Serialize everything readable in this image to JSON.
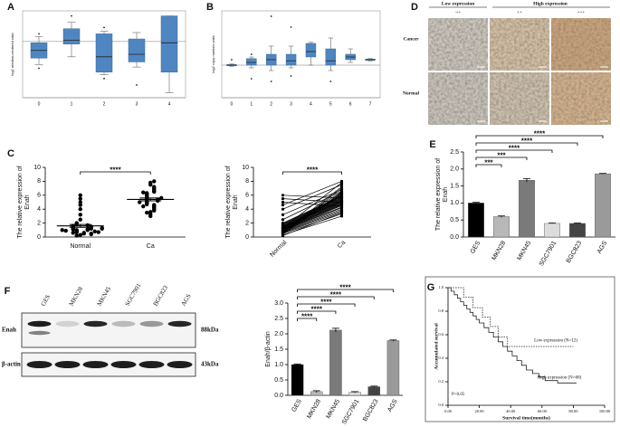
{
  "panel_labels": [
    "A",
    "B",
    "C",
    "D",
    "E",
    "F",
    "G"
  ],
  "ihc": {
    "col_groups": [
      "Low expression",
      "High expression"
    ],
    "grades": [
      "-/+",
      "++",
      "+++"
    ],
    "rows": [
      "Cancer",
      "Normal"
    ]
  },
  "blot": {
    "lanes": [
      "GES",
      "MKN28",
      "MKN45",
      "SGC7901",
      "BGC823",
      "AGS"
    ],
    "bands": [
      {
        "name": "Enah",
        "size": "88kDa"
      },
      {
        "name": "β-actin",
        "size": "43kDa"
      }
    ]
  },
  "chart_data": [
    {
      "type": "box",
      "y_label": "log2 median-centered ratio",
      "categories": [
        "0",
        "1",
        "2",
        "3",
        "4"
      ],
      "color": "#4f86c1",
      "reference_line": 0,
      "ylim": [
        -2.2,
        1.2
      ],
      "boxes": [
        {
          "low": -0.9,
          "q1": -0.65,
          "median": -0.35,
          "q3": -0.05,
          "high": 0.2,
          "outliers": [
            0.3,
            -1.05
          ]
        },
        {
          "low": -0.6,
          "q1": -0.1,
          "median": 0.05,
          "q3": 0.5,
          "high": 0.75,
          "outliers": [
            1.0
          ]
        },
        {
          "low": -1.3,
          "q1": -1.2,
          "median": -0.6,
          "q3": 0.3,
          "high": 0.4,
          "outliers": [
            0.55,
            -1.45
          ]
        },
        {
          "low": -1.0,
          "q1": -0.8,
          "median": -0.5,
          "q3": 0.1,
          "high": 0.35,
          "outliers": [
            -1.7
          ]
        },
        {
          "low": -2.0,
          "q1": -1.2,
          "median": -0.05,
          "q3": 1.0,
          "high": 1.0,
          "outliers": []
        }
      ]
    },
    {
      "type": "box",
      "y_label": "log2 copy number units",
      "categories": [
        "0",
        "1",
        "2",
        "3",
        "4",
        "5",
        "6",
        "7"
      ],
      "color": "#4f86c1",
      "reference_line": 0,
      "ylim": [
        -0.6,
        1.0
      ],
      "boxes": [
        {
          "low": -0.02,
          "q1": -0.01,
          "median": 0.0,
          "q3": 0.01,
          "high": 0.02,
          "outliers": [
            0.1
          ]
        },
        {
          "low": -0.05,
          "q1": 0.0,
          "median": 0.05,
          "q3": 0.12,
          "high": 0.15,
          "outliers": [
            0.2,
            -0.25
          ]
        },
        {
          "low": -0.1,
          "q1": 0.0,
          "median": 0.1,
          "q3": 0.2,
          "high": 0.35,
          "outliers": [
            0.9,
            -0.3
          ]
        },
        {
          "low": -0.05,
          "q1": 0.0,
          "median": 0.08,
          "q3": 0.2,
          "high": 0.35,
          "outliers": [
            0.7,
            -0.2
          ]
        },
        {
          "low": 0.0,
          "q1": 0.15,
          "median": 0.25,
          "q3": 0.4,
          "high": 0.42,
          "outliers": []
        },
        {
          "low": -0.1,
          "q1": 0.0,
          "median": 0.08,
          "q3": 0.3,
          "high": 0.5,
          "outliers": [
            -0.3
          ]
        },
        {
          "low": 0.05,
          "q1": 0.1,
          "median": 0.15,
          "q3": 0.2,
          "high": 0.3,
          "outliers": []
        },
        {
          "low": 0.08,
          "q1": 0.09,
          "median": 0.1,
          "q3": 0.11,
          "high": 0.12,
          "outliers": []
        }
      ]
    },
    {
      "type": "strip",
      "y_label": [
        "The relative expression of",
        "Enah"
      ],
      "categories": [
        "Normal",
        "Ca"
      ],
      "ylim": [
        0,
        10
      ],
      "yticks": [
        0,
        2,
        4,
        6,
        8,
        10
      ],
      "groups": [
        {
          "values": [
            0.3,
            0.5,
            0.6,
            0.7,
            0.8,
            0.9,
            1.0,
            1.0,
            1.1,
            1.1,
            1.2,
            1.2,
            1.3,
            1.3,
            1.4,
            1.4,
            1.5,
            1.5,
            1.6,
            1.7,
            1.8,
            1.9,
            2.0,
            0.6,
            0.8,
            0.9,
            1.0,
            1.2,
            2.5,
            3.2,
            0.5,
            0.7,
            4.0,
            1.3,
            4.6,
            5.0,
            5.5,
            6.0,
            0.4,
            0.2
          ],
          "mean": 1.6,
          "sem": 0.2
        },
        {
          "values": [
            3.0,
            3.3,
            3.6,
            3.8,
            4.0,
            4.2,
            4.3,
            4.5,
            4.6,
            4.7,
            4.8,
            4.9,
            5.0,
            5.1,
            5.2,
            5.2,
            5.3,
            5.4,
            5.5,
            5.6,
            5.7,
            5.8,
            5.9,
            6.0,
            6.1,
            6.2,
            6.3,
            6.5,
            6.6,
            6.8,
            7.0,
            7.2,
            7.5,
            7.8,
            8.0,
            4.4,
            5.0,
            5.6,
            6.4,
            3.5
          ],
          "mean": 5.4,
          "sem": 0.2
        }
      ],
      "significance": [
        {
          "pair": [
            "Normal",
            "Ca"
          ],
          "label": "****"
        }
      ]
    },
    {
      "type": "paired",
      "y_label": [
        "The relative expression of",
        "Enah"
      ],
      "categories": [
        "Normal",
        "Ca"
      ],
      "ylim": [
        0,
        10
      ],
      "yticks": [
        0,
        2,
        4,
        6,
        8,
        10
      ],
      "groups": [
        {
          "values": [
            0.3,
            0.5,
            0.6,
            0.7,
            0.8,
            0.9,
            1.0,
            1.0,
            1.1,
            1.1,
            1.2,
            1.2,
            1.3,
            1.3,
            1.4,
            1.4,
            1.5,
            1.5,
            1.6,
            1.7,
            1.8,
            1.9,
            2.0,
            0.6,
            0.8,
            0.9,
            1.0,
            1.2,
            2.5,
            3.2,
            0.5,
            0.7,
            4.0,
            1.3,
            4.6,
            5.0,
            5.5,
            6.0,
            0.4,
            0.2
          ]
        },
        {
          "values": [
            3.0,
            3.3,
            3.6,
            3.8,
            4.0,
            4.2,
            4.3,
            4.5,
            4.6,
            4.7,
            4.8,
            4.9,
            5.0,
            5.1,
            5.2,
            5.2,
            5.3,
            5.4,
            5.5,
            5.6,
            5.7,
            5.8,
            5.9,
            6.0,
            6.1,
            6.2,
            6.3,
            6.5,
            6.6,
            6.8,
            7.0,
            7.2,
            7.5,
            7.8,
            8.0,
            4.4,
            5.0,
            5.6,
            6.4,
            3.5
          ]
        }
      ],
      "significance": [
        {
          "pair": [
            "Normal",
            "Ca"
          ],
          "label": "****"
        }
      ]
    },
    {
      "type": "bar",
      "y_label": [
        "The relative expression of",
        "Enah"
      ],
      "categories": [
        "GES",
        "MKN28",
        "MKN45",
        "SGC7901",
        "BGC823",
        "AGS"
      ],
      "values": [
        1.0,
        0.6,
        1.67,
        0.4,
        0.4,
        1.86
      ],
      "errors": [
        0.02,
        0.02,
        0.05,
        0.01,
        0.01,
        0.01
      ],
      "colors": [
        "#000000",
        "#b8b8b8",
        "#7a7a7a",
        "#dcdcdc",
        "#444444",
        "#9a9a9a"
      ],
      "ylim": [
        0,
        2.5
      ],
      "yticks": [
        {
          "value": 0,
          "label": "0.0"
        },
        0.5,
        {
          "value": 1,
          "label": "1.0"
        },
        1.5,
        {
          "value": 2,
          "label": "2.0"
        },
        2.5
      ],
      "significance": [
        {
          "pair": [
            "GES",
            "AGS"
          ],
          "label": "****"
        },
        {
          "pair": [
            "GES",
            "BGC823"
          ],
          "label": "****"
        },
        {
          "pair": [
            "GES",
            "SGC7901"
          ],
          "label": "****"
        },
        {
          "pair": [
            "GES",
            "MKN45"
          ],
          "label": "***"
        },
        {
          "pair": [
            "GES",
            "MKN28"
          ],
          "label": "***"
        }
      ]
    },
    {
      "type": "bar",
      "y_label": "Enah/β-actin",
      "categories": [
        "GES",
        "MKN28",
        "MKN45",
        "SGC7901",
        "BGC823",
        "AGS"
      ],
      "values": [
        1.0,
        0.12,
        2.12,
        0.1,
        0.28,
        1.78
      ],
      "errors": [
        0.02,
        0.03,
        0.06,
        0.02,
        0.02,
        0.02
      ],
      "colors": [
        "#000000",
        "#b8b8b8",
        "#7a7a7a",
        "#dcdcdc",
        "#444444",
        "#9a9a9a"
      ],
      "ylim": [
        0,
        3
      ],
      "yticks": [
        {
          "value": 0,
          "label": "0.0"
        },
        0.5,
        {
          "value": 1,
          "label": "1.0"
        },
        1.5,
        {
          "value": 2,
          "label": "2.0"
        },
        2.5,
        {
          "value": 3,
          "label": "3.0"
        }
      ],
      "significance": [
        {
          "pair": [
            "GES",
            "AGS"
          ],
          "label": "****"
        },
        {
          "pair": [
            "GES",
            "BGC823"
          ],
          "label": "****"
        },
        {
          "pair": [
            "GES",
            "SGC7901"
          ],
          "label": "****"
        },
        {
          "pair": [
            "GES",
            "MKN45"
          ],
          "label": "****"
        },
        {
          "pair": [
            "GES",
            "MKN28"
          ],
          "label": "****"
        }
      ]
    },
    {
      "type": "step",
      "x_label": "Survival time(months)",
      "y_label": "Accumulated survival",
      "xlim": [
        0,
        100
      ],
      "ylim": [
        0,
        1
      ],
      "xticks": [
        {
          "value": 0,
          "label": "0.00"
        },
        {
          "value": 20,
          "label": "20.00"
        },
        {
          "value": 40,
          "label": "40.00"
        },
        {
          "value": 60,
          "label": "60.00"
        },
        {
          "value": 80,
          "label": "80.00"
        },
        {
          "value": 100,
          "label": "100.00"
        }
      ],
      "yticks": [
        {
          "value": 0,
          "label": "0.0"
        },
        0.2,
        0.4,
        0.6,
        0.8,
        {
          "value": 1,
          "label": "1.0"
        }
      ],
      "series": [
        {
          "name": "Low expression (N=12)",
          "color": "#222222",
          "x": [
            0,
            10,
            16,
            22,
            27,
            32,
            38,
            80
          ],
          "values": [
            1,
            0.92,
            0.83,
            0.75,
            0.67,
            0.58,
            0.5,
            0.5
          ]
        },
        {
          "name": "High expression (N=68)",
          "color": "#222222",
          "x": [
            0,
            2,
            4,
            6,
            8,
            10,
            12,
            14,
            16,
            18,
            20,
            23,
            26,
            29,
            32,
            35,
            38,
            41,
            44,
            47,
            50,
            54,
            58,
            62,
            70,
            82
          ],
          "values": [
            1,
            0.97,
            0.94,
            0.91,
            0.88,
            0.85,
            0.82,
            0.79,
            0.76,
            0.73,
            0.7,
            0.66,
            0.62,
            0.58,
            0.54,
            0.5,
            0.46,
            0.42,
            0.38,
            0.34,
            0.3,
            0.27,
            0.24,
            0.21,
            0.19,
            0.19
          ]
        }
      ],
      "annotation": "P<0.05"
    }
  ]
}
